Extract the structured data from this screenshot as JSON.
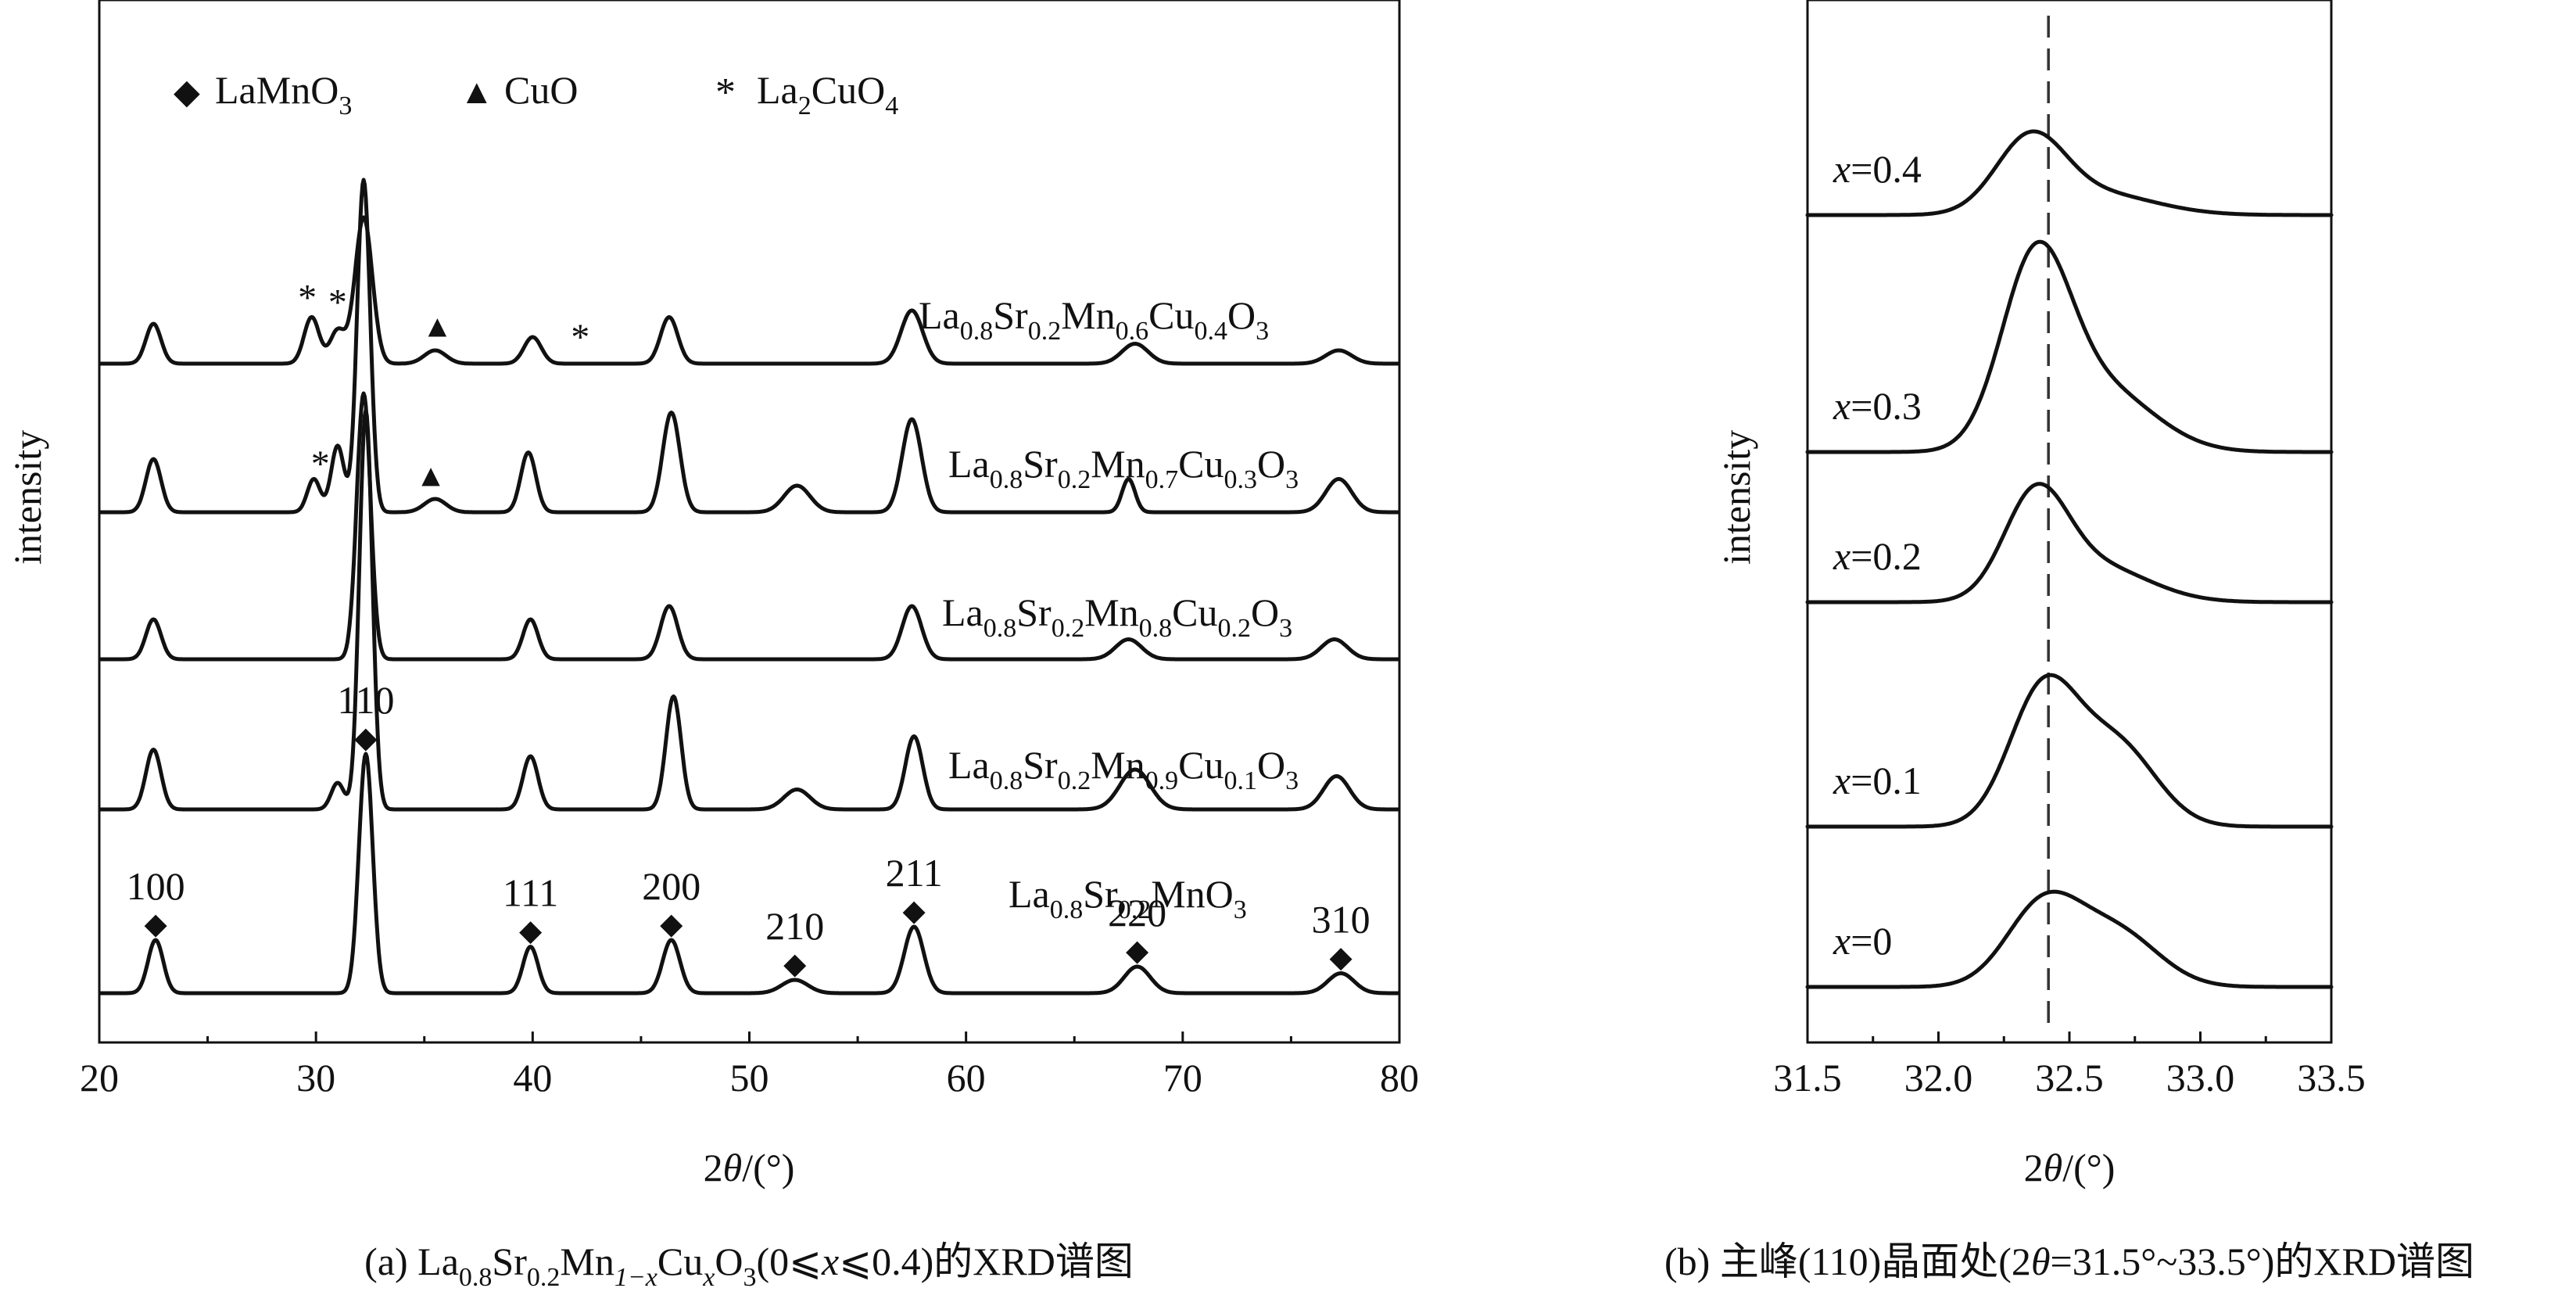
{
  "panel_a": {
    "caption_prefix": "(a) La",
    "caption_sub1": "0.8",
    "caption_mid1": "Sr",
    "caption_sub2": "0.2",
    "caption_mid2": "Mn",
    "caption_sub3": "1−x",
    "caption_mid3": "Cu",
    "caption_sub4": "x",
    "caption_mid4": "O",
    "caption_sub5": "3",
    "caption_mid5": "(0⩽",
    "caption_var1": "x",
    "caption_mid6": "⩽0.4)的XRD谱图",
    "legend": [
      {
        "symbol": "◆",
        "text": "LaMnO",
        "sub": "3",
        "symbol_name": "diamond-icon"
      },
      {
        "symbol": "▲",
        "text": "CuO",
        "sub": "",
        "symbol_name": "triangle-icon"
      },
      {
        "symbol": "*",
        "text": "La",
        "sub": "2",
        "text2": "CuO",
        "sub2": "4",
        "symbol_name": "asterisk-icon"
      }
    ],
    "sample_labels": [
      {
        "parts": [
          "La",
          "0.8",
          "Sr",
          "0.2",
          "Mn",
          "0.6",
          "Cu",
          "0.4",
          "O",
          "3"
        ]
      },
      {
        "parts": [
          "La",
          "0.8",
          "Sr",
          "0.2",
          "Mn",
          "0.7",
          "Cu",
          "0.3",
          "O",
          "3"
        ]
      },
      {
        "parts": [
          "La",
          "0.8",
          "Sr",
          "0.2",
          "Mn",
          "0.8",
          "Cu",
          "0.2",
          "O",
          "3"
        ]
      },
      {
        "parts": [
          "La",
          "0.8",
          "Sr",
          "0.2",
          "Mn",
          "0.9",
          "Cu",
          "0.1",
          "O",
          "3"
        ]
      },
      {
        "parts": [
          "La",
          "0.8",
          "Sr",
          "0.2",
          "MnO",
          "3"
        ]
      }
    ],
    "hkl_labels": [
      {
        "text": "100",
        "x": 22.6
      },
      {
        "text": "110",
        "x": 32.3
      },
      {
        "text": "111",
        "x": 39.9
      },
      {
        "text": "200",
        "x": 46.4
      },
      {
        "text": "210",
        "x": 52.1
      },
      {
        "text": "211",
        "x": 57.6
      },
      {
        "text": "220",
        "x": 67.9
      },
      {
        "text": "310",
        "x": 77.3
      }
    ]
  },
  "panel_b": {
    "caption_prefix": "(b) 主峰(110)晶面处(2",
    "caption_var": "θ",
    "caption_suffix": "=31.5°~33.5°)的XRD谱图",
    "x_labels": [
      {
        "prefix": "x",
        "text": "=0.4"
      },
      {
        "prefix": "x",
        "text": "=0.3"
      },
      {
        "prefix": "x",
        "text": "=0.2"
      },
      {
        "prefix": "x",
        "text": "=0.1"
      },
      {
        "prefix": "x",
        "text": "=0"
      }
    ]
  },
  "chart_data": [
    {
      "type": "line",
      "ylabel": "intensity",
      "xlabel_pre": "2",
      "xlabel_var": "θ",
      "xlabel_post": "/(°)",
      "xlim": [
        20,
        80
      ],
      "xticks": [
        "20",
        "30",
        "40",
        "50",
        "60",
        "70",
        "80"
      ],
      "series": [
        {
          "name": "La0.8Sr0.2Mn0.6Cu0.4O3",
          "baseline": 0.0,
          "peaks": [
            [
              22.5,
              0.06,
              0.35
            ],
            [
              29.8,
              0.07,
              0.35
            ],
            [
              31.0,
              0.05,
              0.35
            ],
            [
              32.2,
              0.22,
              0.4
            ],
            [
              35.5,
              0.02,
              0.5
            ],
            [
              40.0,
              0.04,
              0.4
            ],
            [
              46.3,
              0.07,
              0.4
            ],
            [
              57.5,
              0.08,
              0.5
            ],
            [
              67.8,
              0.03,
              0.6
            ],
            [
              77.2,
              0.02,
              0.6
            ]
          ],
          "markers": [
            {
              "symbol": "*",
              "x": 29.6
            },
            {
              "symbol": "*",
              "x": 31.0
            },
            {
              "symbol": "▲",
              "x": 35.6
            },
            {
              "symbol": "*",
              "x": 42.2
            }
          ]
        },
        {
          "name": "La0.8Sr0.2Mn0.7Cu0.3O3",
          "baseline": 0.0,
          "peaks": [
            [
              22.5,
              0.08,
              0.35
            ],
            [
              29.9,
              0.05,
              0.3
            ],
            [
              31.0,
              0.1,
              0.3
            ],
            [
              32.2,
              0.5,
              0.3
            ],
            [
              35.5,
              0.02,
              0.5
            ],
            [
              39.8,
              0.09,
              0.35
            ],
            [
              46.4,
              0.15,
              0.4
            ],
            [
              52.2,
              0.04,
              0.6
            ],
            [
              57.5,
              0.14,
              0.45
            ],
            [
              67.5,
              0.05,
              0.3
            ],
            [
              77.2,
              0.05,
              0.6
            ]
          ],
          "markers": [
            {
              "symbol": "*",
              "x": 30.2
            },
            {
              "symbol": "▲",
              "x": 35.3
            }
          ]
        },
        {
          "name": "La0.8Sr0.2Mn0.8Cu0.2O3",
          "baseline": 0.0,
          "peaks": [
            [
              22.5,
              0.06,
              0.35
            ],
            [
              32.2,
              0.4,
              0.32
            ],
            [
              39.9,
              0.06,
              0.35
            ],
            [
              46.3,
              0.08,
              0.4
            ],
            [
              57.5,
              0.08,
              0.45
            ],
            [
              67.5,
              0.03,
              0.6
            ],
            [
              77.0,
              0.03,
              0.6
            ]
          ],
          "markers": []
        },
        {
          "name": "La0.8Sr0.2Mn0.9Cu0.1O3",
          "baseline": 0.0,
          "peaks": [
            [
              22.5,
              0.09,
              0.35
            ],
            [
              31.0,
              0.04,
              0.3
            ],
            [
              32.3,
              0.6,
              0.3
            ],
            [
              39.9,
              0.08,
              0.35
            ],
            [
              46.5,
              0.17,
              0.35
            ],
            [
              52.2,
              0.03,
              0.6
            ],
            [
              57.6,
              0.11,
              0.4
            ],
            [
              67.8,
              0.06,
              0.7
            ],
            [
              77.1,
              0.05,
              0.6
            ]
          ],
          "markers": []
        },
        {
          "name": "La0.8Sr0.2MnO3",
          "baseline": 0.0,
          "peaks": [
            [
              22.6,
              0.08,
              0.35
            ],
            [
              32.3,
              0.36,
              0.32
            ],
            [
              39.9,
              0.07,
              0.35
            ],
            [
              46.4,
              0.08,
              0.4
            ],
            [
              52.1,
              0.02,
              0.6
            ],
            [
              57.6,
              0.1,
              0.45
            ],
            [
              67.9,
              0.04,
              0.6
            ],
            [
              77.3,
              0.03,
              0.6
            ]
          ],
          "markers": []
        }
      ]
    },
    {
      "type": "line",
      "ylabel": "intensity",
      "xlabel_pre": "2",
      "xlabel_var": "θ",
      "xlabel_post": "/(°)",
      "xlim": [
        31.5,
        33.5
      ],
      "xticks": [
        "31.5",
        "32.0",
        "32.5",
        "33.0",
        "33.5"
      ],
      "reference_line_x": 32.42,
      "series": [
        {
          "name": "x=0.4",
          "peaks": [
            [
              32.35,
              0.4,
              0.13
            ],
            [
              32.6,
              0.12,
              0.22
            ]
          ],
          "left_base": 0.0,
          "right_base": 0.0
        },
        {
          "name": "x=0.3",
          "peaks": [
            [
              32.37,
              1.0,
              0.13
            ],
            [
              32.62,
              0.35,
              0.2
            ]
          ],
          "left_base": 0.0,
          "right_base": 0.0
        },
        {
          "name": "x=0.2",
          "peaks": [
            [
              32.37,
              0.55,
              0.12
            ],
            [
              32.6,
              0.2,
              0.2
            ]
          ],
          "left_base": 0.0,
          "right_base": 0.0
        },
        {
          "name": "x=0.1",
          "peaks": [
            [
              32.4,
              0.75,
              0.13
            ],
            [
              32.68,
              0.45,
              0.15
            ]
          ],
          "left_base": 0.0,
          "right_base": 0.0
        },
        {
          "name": "x=0",
          "peaks": [
            [
              32.4,
              0.45,
              0.14
            ],
            [
              32.68,
              0.3,
              0.16
            ]
          ],
          "left_base": 0.0,
          "right_base": 0.0
        }
      ]
    }
  ]
}
